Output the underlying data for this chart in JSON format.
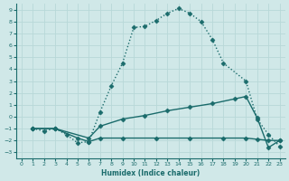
{
  "xlabel": "Humidex (Indice chaleur)",
  "xlim": [
    -0.5,
    23.5
  ],
  "ylim": [
    -3.5,
    9.5
  ],
  "xticks": [
    0,
    1,
    2,
    3,
    4,
    5,
    6,
    7,
    8,
    9,
    10,
    11,
    12,
    13,
    14,
    15,
    16,
    17,
    18,
    19,
    20,
    21,
    22,
    23
  ],
  "yticks": [
    -3,
    -2,
    -1,
    0,
    1,
    2,
    3,
    4,
    5,
    6,
    7,
    8,
    9
  ],
  "bg_color": "#d0e8e8",
  "grid_color": "#b8d8d8",
  "line_color": "#1a6b6b",
  "line1_x": [
    1,
    2,
    3,
    4,
    5,
    6,
    7,
    8,
    9,
    10,
    11,
    12,
    13,
    14,
    15,
    16,
    17,
    18,
    20,
    21,
    22,
    23
  ],
  "line1_y": [
    -1,
    -1.2,
    -1,
    -1.5,
    -2.2,
    -2.1,
    0.4,
    2.6,
    4.5,
    7.5,
    7.6,
    8.1,
    8.7,
    9.1,
    8.7,
    8.0,
    6.5,
    4.5,
    3.0,
    -0.2,
    -1.5,
    -2.5
  ],
  "line2_x": [
    1,
    3,
    6,
    7,
    9,
    11,
    13,
    15,
    17,
    19,
    20,
    21,
    22,
    23
  ],
  "line2_y": [
    -1,
    -1,
    -1.8,
    -0.8,
    -0.2,
    0.1,
    0.5,
    0.8,
    1.1,
    1.5,
    1.7,
    -0.1,
    -2.6,
    -2.0
  ],
  "line3_x": [
    1,
    3,
    5,
    6,
    7,
    9,
    12,
    15,
    18,
    20,
    21,
    22,
    23
  ],
  "line3_y": [
    -1,
    -1,
    -1.8,
    -2.1,
    -1.8,
    -1.8,
    -1.8,
    -1.8,
    -1.8,
    -1.8,
    -1.9,
    -2.0,
    -2.0
  ],
  "markersize": 2.5,
  "linewidth": 1.0
}
